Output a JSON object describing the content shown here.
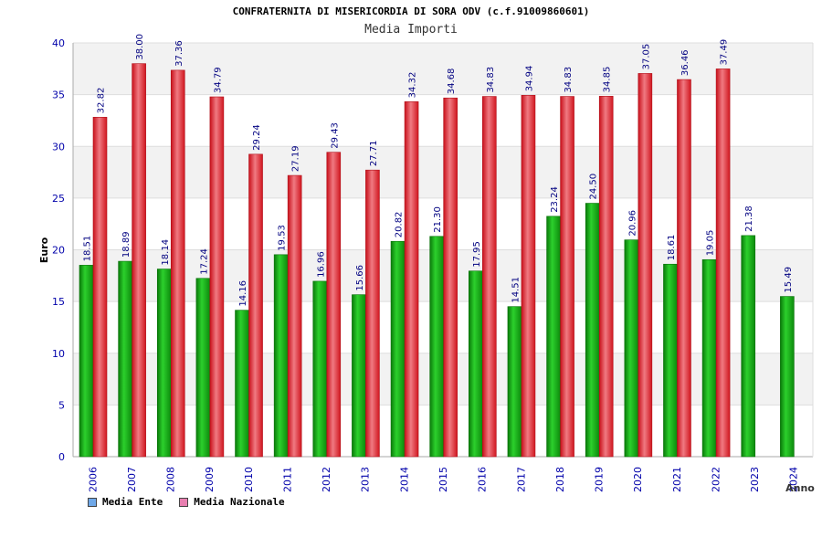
{
  "chart_data": {
    "type": "bar",
    "title": "CONFRATERNITA DI MISERICORDIA DI SORA ODV (c.f.91009860601)",
    "subtitle": "Media Importi",
    "ylabel": "Euro",
    "xlabel": "Anno",
    "ylim": [
      0,
      40
    ],
    "yticks": [
      0,
      5,
      10,
      15,
      20,
      25,
      30,
      35,
      40
    ],
    "grid": true,
    "legend_position": "bottom-left",
    "categories": [
      "2006",
      "2007",
      "2008",
      "2009",
      "2010",
      "2011",
      "2012",
      "2013",
      "2014",
      "2015",
      "2016",
      "2017",
      "2018",
      "2019",
      "2020",
      "2021",
      "2022",
      "2023",
      "2024"
    ],
    "series": [
      {
        "name": "Media Ente",
        "color": "#1fb01f",
        "legend_color": "#6fa8e8",
        "values": [
          18.51,
          18.89,
          18.14,
          17.24,
          14.16,
          19.53,
          16.96,
          15.66,
          20.82,
          21.3,
          17.95,
          14.51,
          23.24,
          24.5,
          20.96,
          18.61,
          19.05,
          21.38,
          15.49
        ],
        "labels": [
          "18.51",
          "18.89",
          "18.14",
          "17.24",
          "14.16",
          "19.53",
          "16.96",
          "15.66",
          "20.82",
          "21.30",
          "17.95",
          "14.51",
          "23.24",
          "24.50",
          "20.96",
          "18.61",
          "19.05",
          "21.38",
          "15.49"
        ]
      },
      {
        "name": "Media Nazionale",
        "color": "#e8303a",
        "legend_color": "#e87fb0",
        "values": [
          32.82,
          38.0,
          37.36,
          34.79,
          29.24,
          27.19,
          29.43,
          27.71,
          34.32,
          34.68,
          34.83,
          34.94,
          34.83,
          34.85,
          37.05,
          36.46,
          37.49,
          null,
          null
        ],
        "labels": [
          "32.82",
          "38.00",
          "37.36",
          "34.79",
          "29.24",
          "27.19",
          "29.43",
          "27.71",
          "34.32",
          "34.68",
          "34.83",
          "34.94",
          "34.83",
          "34.85",
          "37.05",
          "36.46",
          "37.49",
          null,
          null
        ]
      }
    ]
  }
}
